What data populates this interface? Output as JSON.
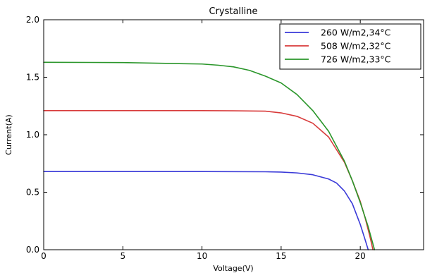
{
  "chart_data": {
    "type": "line",
    "title": "Crystalline",
    "xlabel": "Voltage(V)",
    "ylabel": "Current(A)",
    "xlim": [
      0,
      24
    ],
    "ylim": [
      0.0,
      2.0
    ],
    "xticks": [
      "0",
      "5",
      "10",
      "15",
      "20"
    ],
    "yticks": [
      "0.0",
      "0.5",
      "1.0",
      "1.5",
      "2.0"
    ],
    "grid": false,
    "legend_position": "top-right",
    "series": [
      {
        "name": "260 W/m2,34°C",
        "color": "#3a3ad8",
        "x": [
          0,
          5,
          10,
          14,
          15,
          16,
          17,
          18,
          18.5,
          19,
          19.5,
          20,
          20.3,
          20.5
        ],
        "y": [
          0.68,
          0.68,
          0.68,
          0.678,
          0.675,
          0.668,
          0.652,
          0.615,
          0.58,
          0.51,
          0.4,
          0.22,
          0.09,
          0.0
        ]
      },
      {
        "name": "508 W/m2,32°C",
        "color": "#d83a3a",
        "x": [
          0,
          5,
          10,
          12,
          14,
          15,
          16,
          17,
          18,
          19,
          19.5,
          20,
          20.3,
          20.6,
          20.8
        ],
        "y": [
          1.21,
          1.21,
          1.21,
          1.208,
          1.205,
          1.19,
          1.16,
          1.1,
          0.98,
          0.76,
          0.6,
          0.42,
          0.28,
          0.12,
          0.0
        ]
      },
      {
        "name": "726 W/m2,33°C",
        "color": "#2a962a",
        "x": [
          0,
          5,
          10,
          11,
          12,
          13,
          14,
          15,
          16,
          17,
          18,
          19,
          19.5,
          20,
          20.5,
          20.9
        ],
        "y": [
          1.63,
          1.628,
          1.615,
          1.605,
          1.59,
          1.56,
          1.51,
          1.45,
          1.35,
          1.21,
          1.03,
          0.77,
          0.6,
          0.41,
          0.2,
          0.0
        ]
      }
    ]
  }
}
